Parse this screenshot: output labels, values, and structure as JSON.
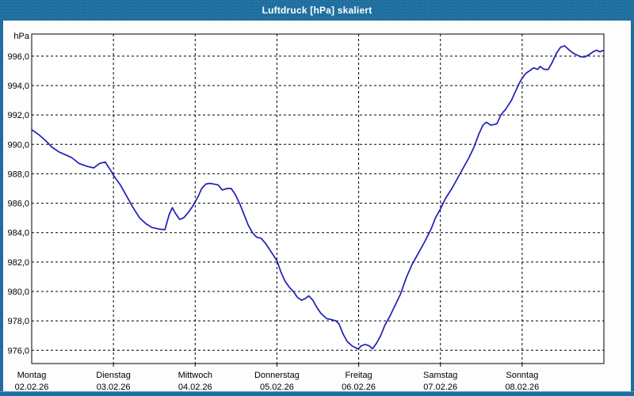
{
  "window": {
    "title": "Luftdruck [hPa] skaliert"
  },
  "colors": {
    "frame": "#1e6f9f",
    "plot_background": "#ffffff",
    "grid": "#000000",
    "axis": "#000000",
    "text": "#000000",
    "title_text": "#ffffff",
    "line": "#1f1fb4"
  },
  "chart_data": {
    "type": "line",
    "title": "Luftdruck [hPa] skaliert",
    "ylabel": "hPa",
    "xlabel": "",
    "grid": "dashed",
    "legend": "none",
    "ylim": [
      975.1,
      997.5
    ],
    "xlim_days": [
      0,
      7
    ],
    "yticks": [
      {
        "value": 976,
        "label": "976,0"
      },
      {
        "value": 978,
        "label": "978,0"
      },
      {
        "value": 980,
        "label": "980,0"
      },
      {
        "value": 982,
        "label": "982,0"
      },
      {
        "value": 984,
        "label": "984,0"
      },
      {
        "value": 986,
        "label": "986,0"
      },
      {
        "value": 988,
        "label": "988,0"
      },
      {
        "value": 990,
        "label": "990,0"
      },
      {
        "value": 992,
        "label": "992,0"
      },
      {
        "value": 994,
        "label": "994,0"
      },
      {
        "value": 996,
        "label": "996,0"
      }
    ],
    "xticks": [
      {
        "day": 0,
        "name": "Montag",
        "date": "02.02.26"
      },
      {
        "day": 1,
        "name": "Dienstag",
        "date": "03.02.26"
      },
      {
        "day": 2,
        "name": "Mittwoch",
        "date": "04.02.26"
      },
      {
        "day": 3,
        "name": "Donnerstag",
        "date": "05.02.26"
      },
      {
        "day": 4,
        "name": "Freitag",
        "date": "06.02.26"
      },
      {
        "day": 5,
        "name": "Samstag",
        "date": "07.02.26"
      },
      {
        "day": 6,
        "name": "Sonntag",
        "date": "08.02.26"
      }
    ],
    "series": [
      {
        "name": "Luftdruck",
        "color": "#1f1fb4",
        "points": [
          [
            0.0,
            991.0
          ],
          [
            0.1,
            990.6
          ],
          [
            0.18,
            990.2
          ],
          [
            0.25,
            989.8
          ],
          [
            0.33,
            989.5
          ],
          [
            0.41,
            989.3
          ],
          [
            0.49,
            989.1
          ],
          [
            0.58,
            988.7
          ],
          [
            0.68,
            988.5
          ],
          [
            0.76,
            988.4
          ],
          [
            0.83,
            988.7
          ],
          [
            0.9,
            988.8
          ],
          [
            0.97,
            988.2
          ],
          [
            1.0,
            987.9
          ],
          [
            1.09,
            987.2
          ],
          [
            1.16,
            986.5
          ],
          [
            1.24,
            985.7
          ],
          [
            1.32,
            985.0
          ],
          [
            1.4,
            984.6
          ],
          [
            1.47,
            984.35
          ],
          [
            1.55,
            984.25
          ],
          [
            1.63,
            984.2
          ],
          [
            1.68,
            985.2
          ],
          [
            1.72,
            985.7
          ],
          [
            1.76,
            985.3
          ],
          [
            1.81,
            984.9
          ],
          [
            1.86,
            985.0
          ],
          [
            1.92,
            985.4
          ],
          [
            1.97,
            985.8
          ],
          [
            2.0,
            986.1
          ],
          [
            2.04,
            986.5
          ],
          [
            2.08,
            987.0
          ],
          [
            2.13,
            987.3
          ],
          [
            2.18,
            987.35
          ],
          [
            2.23,
            987.3
          ],
          [
            2.28,
            987.25
          ],
          [
            2.33,
            986.9
          ],
          [
            2.39,
            987.0
          ],
          [
            2.44,
            987.0
          ],
          [
            2.49,
            986.6
          ],
          [
            2.55,
            985.9
          ],
          [
            2.6,
            985.2
          ],
          [
            2.65,
            984.5
          ],
          [
            2.7,
            984.0
          ],
          [
            2.75,
            983.7
          ],
          [
            2.81,
            983.6
          ],
          [
            2.87,
            983.2
          ],
          [
            2.94,
            982.6
          ],
          [
            3.0,
            982.1
          ],
          [
            3.05,
            981.3
          ],
          [
            3.1,
            980.7
          ],
          [
            3.15,
            980.3
          ],
          [
            3.2,
            980.0
          ],
          [
            3.25,
            979.6
          ],
          [
            3.3,
            979.4
          ],
          [
            3.34,
            979.5
          ],
          [
            3.39,
            979.7
          ],
          [
            3.44,
            979.4
          ],
          [
            3.49,
            978.9
          ],
          [
            3.54,
            978.5
          ],
          [
            3.61,
            978.15
          ],
          [
            3.66,
            978.1
          ],
          [
            3.72,
            978.0
          ],
          [
            3.76,
            977.8
          ],
          [
            3.81,
            977.1
          ],
          [
            3.86,
            976.6
          ],
          [
            3.92,
            976.3
          ],
          [
            3.97,
            976.15
          ],
          [
            4.0,
            976.1
          ],
          [
            4.03,
            976.3
          ],
          [
            4.08,
            976.4
          ],
          [
            4.13,
            976.3
          ],
          [
            4.17,
            976.1
          ],
          [
            4.22,
            976.5
          ],
          [
            4.27,
            977.0
          ],
          [
            4.32,
            977.7
          ],
          [
            4.38,
            978.3
          ],
          [
            4.44,
            979.0
          ],
          [
            4.51,
            979.8
          ],
          [
            4.58,
            980.9
          ],
          [
            4.65,
            981.8
          ],
          [
            4.73,
            982.6
          ],
          [
            4.81,
            983.4
          ],
          [
            4.89,
            984.3
          ],
          [
            4.94,
            985.0
          ],
          [
            5.0,
            985.6
          ],
          [
            5.06,
            986.3
          ],
          [
            5.14,
            987.0
          ],
          [
            5.22,
            987.8
          ],
          [
            5.28,
            988.4
          ],
          [
            5.35,
            989.1
          ],
          [
            5.41,
            989.8
          ],
          [
            5.47,
            990.7
          ],
          [
            5.52,
            991.3
          ],
          [
            5.56,
            991.5
          ],
          [
            5.62,
            991.3
          ],
          [
            5.69,
            991.4
          ],
          [
            5.74,
            992.0
          ],
          [
            5.8,
            992.4
          ],
          [
            5.87,
            993.0
          ],
          [
            5.91,
            993.5
          ],
          [
            5.96,
            994.1
          ],
          [
            6.0,
            994.5
          ],
          [
            6.04,
            994.8
          ],
          [
            6.09,
            995.0
          ],
          [
            6.14,
            995.2
          ],
          [
            6.19,
            995.1
          ],
          [
            6.22,
            995.3
          ],
          [
            6.27,
            995.1
          ],
          [
            6.32,
            995.1
          ],
          [
            6.37,
            995.6
          ],
          [
            6.42,
            996.2
          ],
          [
            6.47,
            996.6
          ],
          [
            6.52,
            996.7
          ],
          [
            6.56,
            996.5
          ],
          [
            6.61,
            996.25
          ],
          [
            6.66,
            996.1
          ],
          [
            6.72,
            995.95
          ],
          [
            6.77,
            995.95
          ],
          [
            6.82,
            996.1
          ],
          [
            6.87,
            996.3
          ],
          [
            6.91,
            996.4
          ],
          [
            6.95,
            996.3
          ],
          [
            7.0,
            996.4
          ]
        ]
      }
    ]
  }
}
